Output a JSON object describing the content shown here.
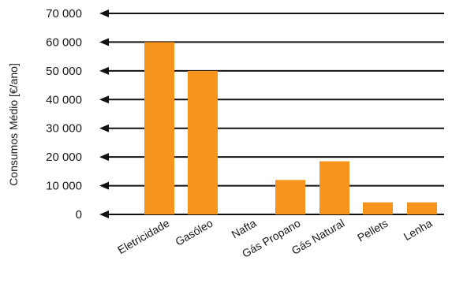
{
  "chart_data": {
    "type": "bar",
    "categories": [
      "Eletricidade",
      "Gasóleo",
      "Nafta",
      "Gás Propano",
      "Gás Natural",
      "Pellets",
      "Lenha"
    ],
    "values": [
      60000,
      50000,
      0,
      12000,
      18500,
      4200,
      4200
    ],
    "title": "",
    "xlabel": "",
    "ylabel": "Consumos Médio [€/ano]",
    "ylim": [
      0,
      70000
    ],
    "yticks": [
      0,
      10000,
      20000,
      30000,
      40000,
      50000,
      60000,
      70000
    ],
    "ytick_labels": [
      "0",
      "10 000",
      "20 000",
      "30 000",
      "40 000",
      "50 000",
      "60 000",
      "70 000"
    ],
    "grid": true,
    "bar_color": "#F7941D",
    "grid_color": "#111111"
  }
}
